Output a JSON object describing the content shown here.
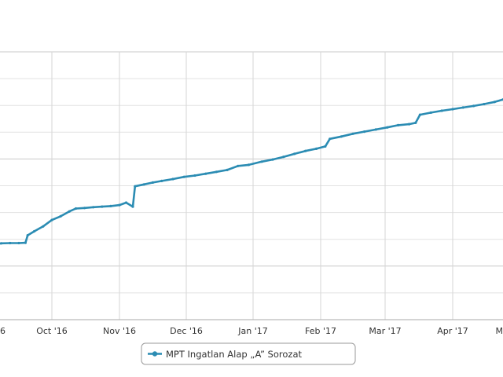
{
  "chart_data": {
    "type": "line",
    "title": "",
    "xlabel": "",
    "ylabel": "",
    "x_tick_labels": [
      "6",
      "Oct '16",
      "Nov '16",
      "Dec '16",
      "Jan '17",
      "Feb '17",
      "Mar '17",
      "Apr '17",
      "M"
    ],
    "x_range": [
      "2016-09-01",
      "2017-05-01"
    ],
    "y_range": [
      0,
      100
    ],
    "y_gridlines": 11,
    "grid": true,
    "legend_position": "bottom-center",
    "series": [
      {
        "name": "MPT Ingatlan Alap „A” Sorozat",
        "color": "#2b8cb3",
        "points": [
          [
            "2016-09-01",
            27.5
          ],
          [
            "2016-09-04",
            28.0
          ],
          [
            "2016-09-08",
            28.5
          ],
          [
            "2016-09-12",
            28.6
          ],
          [
            "2016-09-16",
            28.6
          ],
          [
            "2016-09-19",
            28.7
          ],
          [
            "2016-09-20",
            31.5
          ],
          [
            "2016-09-23",
            33.0
          ],
          [
            "2016-09-27",
            34.8
          ],
          [
            "2016-10-01",
            37.2
          ],
          [
            "2016-10-05",
            38.6
          ],
          [
            "2016-10-09",
            40.4
          ],
          [
            "2016-10-12",
            41.5
          ],
          [
            "2016-10-16",
            41.7
          ],
          [
            "2016-10-20",
            42.0
          ],
          [
            "2016-10-24",
            42.2
          ],
          [
            "2016-10-28",
            42.4
          ],
          [
            "2016-11-01",
            42.8
          ],
          [
            "2016-11-04",
            43.7
          ],
          [
            "2016-11-07",
            42.2
          ],
          [
            "2016-11-08",
            49.8
          ],
          [
            "2016-11-12",
            50.5
          ],
          [
            "2016-11-16",
            51.2
          ],
          [
            "2016-11-20",
            51.8
          ],
          [
            "2016-11-25",
            52.5
          ],
          [
            "2016-11-30",
            53.3
          ],
          [
            "2016-12-05",
            53.8
          ],
          [
            "2016-12-10",
            54.5
          ],
          [
            "2016-12-15",
            55.2
          ],
          [
            "2016-12-20",
            55.9
          ],
          [
            "2016-12-25",
            57.4
          ],
          [
            "2016-12-30",
            57.8
          ],
          [
            "2017-01-05",
            59.0
          ],
          [
            "2017-01-10",
            59.8
          ],
          [
            "2017-01-15",
            60.8
          ],
          [
            "2017-01-20",
            61.9
          ],
          [
            "2017-01-25",
            63.0
          ],
          [
            "2017-01-30",
            63.8
          ],
          [
            "2017-02-03",
            64.7
          ],
          [
            "2017-02-05",
            67.5
          ],
          [
            "2017-02-10",
            68.4
          ],
          [
            "2017-02-15",
            69.4
          ],
          [
            "2017-02-20",
            70.2
          ],
          [
            "2017-02-25",
            71.0
          ],
          [
            "2017-03-02",
            71.8
          ],
          [
            "2017-03-07",
            72.6
          ],
          [
            "2017-03-12",
            73.0
          ],
          [
            "2017-03-15",
            73.5
          ],
          [
            "2017-03-17",
            76.5
          ],
          [
            "2017-03-22",
            77.3
          ],
          [
            "2017-03-27",
            78.0
          ],
          [
            "2017-04-01",
            78.6
          ],
          [
            "2017-04-06",
            79.2
          ],
          [
            "2017-04-11",
            79.8
          ],
          [
            "2017-04-16",
            80.5
          ],
          [
            "2017-04-21",
            81.3
          ],
          [
            "2017-04-25",
            82.2
          ],
          [
            "2017-04-28",
            82.8
          ],
          [
            "2017-05-01",
            83.3
          ]
        ]
      }
    ]
  }
}
